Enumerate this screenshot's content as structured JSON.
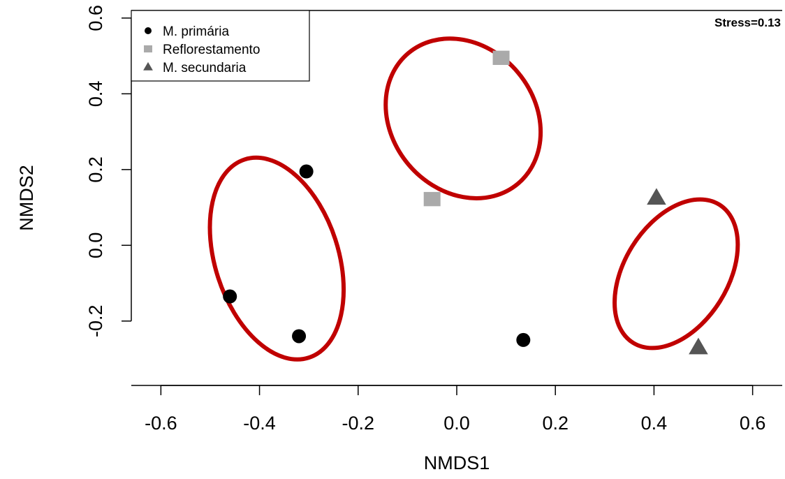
{
  "chart_data": {
    "type": "scatter",
    "title": "",
    "xlabel": "NMDS1",
    "ylabel": "NMDS2",
    "xlim": [
      -0.66,
      0.66
    ],
    "ylim": [
      -0.37,
      0.62
    ],
    "x_ticks": [
      -0.6,
      -0.4,
      -0.2,
      0.0,
      0.2,
      0.4,
      0.6
    ],
    "x_tick_labels": [
      "-0.6",
      "-0.4",
      "-0.2",
      "0.0",
      "0.2",
      "0.4",
      "0.6"
    ],
    "y_ticks": [
      -0.2,
      0.0,
      0.2,
      0.4,
      0.6
    ],
    "y_tick_labels": [
      "-0.2",
      "0.0",
      "0.2",
      "0.4",
      "0.6"
    ],
    "grid": false,
    "legend_position": "top-left",
    "annotation": "Stress=0.13",
    "series": [
      {
        "name": "M. primária",
        "marker": "circle",
        "color": "#000000",
        "points": [
          {
            "x": -0.305,
            "y": 0.195
          },
          {
            "x": -0.46,
            "y": -0.135
          },
          {
            "x": -0.32,
            "y": -0.24
          },
          {
            "x": 0.135,
            "y": -0.25
          }
        ]
      },
      {
        "name": "Reflorestamento",
        "marker": "square",
        "color": "#aaaaaa",
        "points": [
          {
            "x": 0.09,
            "y": 0.495
          },
          {
            "x": -0.05,
            "y": 0.122
          }
        ]
      },
      {
        "name": "M. secundaria",
        "marker": "triangle",
        "color": "#555555",
        "points": [
          {
            "x": 0.405,
            "y": 0.125
          },
          {
            "x": 0.49,
            "y": -0.27
          }
        ]
      }
    ],
    "ellipses": [
      {
        "cx": -0.365,
        "cy": -0.035,
        "rx": 0.125,
        "ry": 0.275,
        "angle_deg": -18,
        "color": "#c00000"
      },
      {
        "cx": 0.013,
        "cy": 0.335,
        "rx": 0.145,
        "ry": 0.225,
        "angle_deg": -40,
        "color": "#c00000"
      },
      {
        "cx": 0.445,
        "cy": -0.075,
        "rx": 0.105,
        "ry": 0.215,
        "angle_deg": 32,
        "color": "#c00000"
      }
    ]
  }
}
